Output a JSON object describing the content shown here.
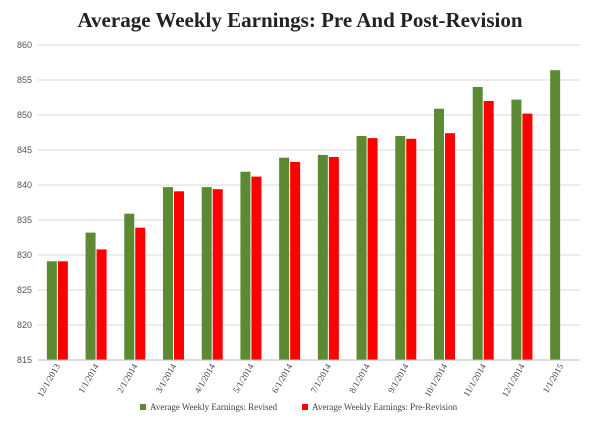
{
  "chart_data": {
    "type": "bar",
    "title": "Average Weekly Earnings: Pre And Post-Revision",
    "xlabel": "",
    "ylabel": "",
    "ylim": [
      815,
      860
    ],
    "yticks": [
      815,
      820,
      825,
      830,
      835,
      840,
      845,
      850,
      855,
      860
    ],
    "grid": true,
    "legend_position": "bottom",
    "categories": [
      "12/1/2013",
      "1/1/2014",
      "2/1/2014",
      "3/1/2014",
      "4/1/2014",
      "5/1/2014",
      "6/1/2014",
      "7/1/2014",
      "8/1/2014",
      "9/1/2014",
      "10/1/2014",
      "11/1/2014",
      "12/1/2014",
      "1/1/2015"
    ],
    "series": [
      {
        "name": "Average Weekly Earnings: Revised",
        "color": "#5b8a33",
        "values": [
          829.1,
          833.2,
          835.9,
          839.7,
          839.7,
          841.9,
          843.9,
          844.3,
          847.0,
          847.0,
          850.9,
          854.0,
          852.2,
          856.4
        ]
      },
      {
        "name": "Average Weekly Earnings: Pre-Revision",
        "color": "#ff0000",
        "values": [
          829.1,
          830.8,
          833.9,
          839.1,
          839.4,
          841.2,
          843.3,
          844.0,
          846.7,
          846.6,
          847.4,
          852.0,
          850.2,
          null
        ]
      }
    ]
  }
}
